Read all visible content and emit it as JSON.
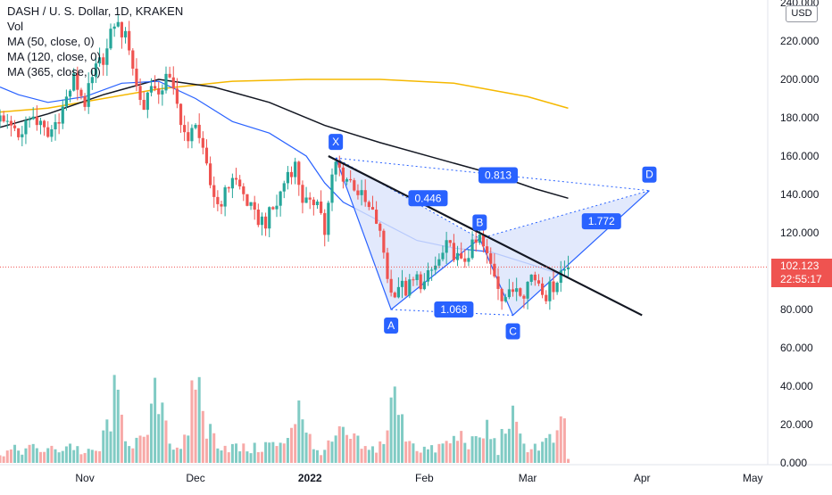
{
  "legend": {
    "symbol": "DASH / U. S. Dollar, 1D, KRAKEN",
    "vol": "Vol",
    "ma50": "MA (50, close, 0)",
    "ma120": "MA (120, close, 0)",
    "ma365": "MA (365, close, 0)"
  },
  "price_axis": {
    "currency": "USD",
    "last_price": "102.123",
    "countdown": "22:55:17"
  },
  "colors": {
    "up": "#26a69a",
    "down": "#ef5350",
    "vol_up": "#80cbc4",
    "vol_down": "#f7a9a7",
    "ma50": "#2962ff",
    "ma120": "#131722",
    "ma365": "#f5b800",
    "pattern": "#2962ff",
    "pattern_fill": "#dbe4fb",
    "trendline": "#131722"
  },
  "chart_data": {
    "type": "candlestick",
    "title": "DASH / U. S. Dollar, 1D, KRAKEN",
    "y_ticks": [
      "0.000",
      "20.000",
      "40.000",
      "60.000",
      "80.000",
      "100.000",
      "120.000",
      "140.000",
      "160.000",
      "180.000",
      "200.000",
      "220.000",
      "240.000"
    ],
    "ylim": [
      0,
      240
    ],
    "x_ticks": [
      {
        "label": "Nov",
        "day": 0
      },
      {
        "label": "Dec",
        "day": 30
      },
      {
        "label": "2022",
        "day": 61
      },
      {
        "label": "Feb",
        "day": 92
      },
      {
        "label": "Mar",
        "day": 120
      },
      {
        "label": "Apr",
        "day": 151
      },
      {
        "label": "May",
        "day": 181
      }
    ],
    "xlim_days": [
      -23,
      187
    ],
    "last_day": 131,
    "price_series_anchors": [
      [
        -23,
        178
      ],
      [
        -18,
        172
      ],
      [
        -14,
        181
      ],
      [
        -10,
        170
      ],
      [
        -6,
        185
      ],
      [
        -3,
        200
      ],
      [
        0,
        188
      ],
      [
        3,
        205
      ],
      [
        6,
        215
      ],
      [
        8,
        230
      ],
      [
        10,
        225
      ],
      [
        12,
        218
      ],
      [
        14,
        196
      ],
      [
        16,
        185
      ],
      [
        18,
        200
      ],
      [
        20,
        188
      ],
      [
        22,
        205
      ],
      [
        24,
        192
      ],
      [
        26,
        180
      ],
      [
        28,
        165
      ],
      [
        30,
        180
      ],
      [
        32,
        160
      ],
      [
        34,
        145
      ],
      [
        36,
        135
      ],
      [
        38,
        140
      ],
      [
        40,
        150
      ],
      [
        43,
        140
      ],
      [
        46,
        128
      ],
      [
        49,
        126
      ],
      [
        52,
        135
      ],
      [
        55,
        152
      ],
      [
        57,
        155
      ],
      [
        59,
        138
      ],
      [
        61,
        133
      ],
      [
        63,
        140
      ],
      [
        65,
        120
      ],
      [
        67,
        148
      ],
      [
        68,
        156
      ],
      [
        70,
        150
      ],
      [
        73,
        145
      ],
      [
        76,
        135
      ],
      [
        79,
        126
      ],
      [
        81,
        110
      ],
      [
        82,
        98
      ],
      [
        83,
        88
      ],
      [
        85,
        93
      ],
      [
        87,
        90
      ],
      [
        90,
        96
      ],
      [
        92,
        93
      ],
      [
        94,
        100
      ],
      [
        96,
        105
      ],
      [
        98,
        112
      ],
      [
        100,
        110
      ],
      [
        102,
        103
      ],
      [
        104,
        110
      ],
      [
        106,
        114
      ],
      [
        107,
        117
      ],
      [
        109,
        107
      ],
      [
        111,
        99
      ],
      [
        113,
        88
      ],
      [
        115,
        87
      ],
      [
        117,
        93
      ],
      [
        119,
        90
      ],
      [
        121,
        98
      ],
      [
        123,
        95
      ],
      [
        125,
        88
      ],
      [
        127,
        93
      ],
      [
        129,
        100
      ],
      [
        131,
        102.1
      ]
    ],
    "volume_anchors": [
      [
        -23,
        7
      ],
      [
        -15,
        9
      ],
      [
        -8,
        8
      ],
      [
        -4,
        12
      ],
      [
        0,
        6
      ],
      [
        4,
        8
      ],
      [
        8,
        40
      ],
      [
        12,
        15
      ],
      [
        16,
        12
      ],
      [
        20,
        48
      ],
      [
        24,
        10
      ],
      [
        28,
        14
      ],
      [
        30,
        60
      ],
      [
        33,
        22
      ],
      [
        37,
        12
      ],
      [
        42,
        9
      ],
      [
        46,
        9
      ],
      [
        50,
        12
      ],
      [
        54,
        10
      ],
      [
        58,
        42
      ],
      [
        62,
        7
      ],
      [
        66,
        10
      ],
      [
        69,
        18
      ],
      [
        73,
        14
      ],
      [
        77,
        7
      ],
      [
        81,
        14
      ],
      [
        84,
        43
      ],
      [
        86,
        24
      ],
      [
        90,
        10
      ],
      [
        94,
        8
      ],
      [
        98,
        12
      ],
      [
        102,
        17
      ],
      [
        106,
        12
      ],
      [
        109,
        22
      ],
      [
        112,
        8
      ],
      [
        115,
        32
      ],
      [
        118,
        14
      ],
      [
        121,
        10
      ],
      [
        124,
        12
      ],
      [
        128,
        16
      ],
      [
        130,
        26
      ],
      [
        131,
        3
      ]
    ],
    "ma365": [
      [
        -23,
        183
      ],
      [
        -10,
        185
      ],
      [
        5,
        190
      ],
      [
        20,
        195
      ],
      [
        40,
        199
      ],
      [
        60,
        200
      ],
      [
        80,
        200
      ],
      [
        100,
        198
      ],
      [
        120,
        191
      ],
      [
        131,
        185
      ]
    ],
    "ma120": [
      [
        -23,
        175
      ],
      [
        -10,
        182
      ],
      [
        5,
        192
      ],
      [
        20,
        200
      ],
      [
        35,
        196
      ],
      [
        50,
        188
      ],
      [
        65,
        176
      ],
      [
        80,
        167
      ],
      [
        95,
        159
      ],
      [
        110,
        151
      ],
      [
        122,
        143
      ],
      [
        131,
        138
      ]
    ],
    "ma50": [
      [
        -23,
        196
      ],
      [
        -18,
        192
      ],
      [
        -10,
        188
      ],
      [
        0,
        191
      ],
      [
        10,
        198
      ],
      [
        20,
        199
      ],
      [
        30,
        190
      ],
      [
        40,
        178
      ],
      [
        50,
        172
      ],
      [
        60,
        160
      ],
      [
        65,
        146
      ],
      [
        70,
        136
      ],
      [
        80,
        126
      ],
      [
        90,
        116
      ],
      [
        100,
        112
      ],
      [
        110,
        110
      ],
      [
        120,
        104
      ],
      [
        131,
        97
      ]
    ],
    "trendline": [
      [
        66,
        160
      ],
      [
        151,
        77
      ]
    ],
    "harmonic_points": [
      {
        "label": "X",
        "day": 68,
        "price": 159
      },
      {
        "label": "A",
        "day": 83,
        "price": 80
      },
      {
        "label": "B",
        "day": 107,
        "price": 117
      },
      {
        "label": "C",
        "day": 116,
        "price": 77
      },
      {
        "label": "D",
        "day": 153,
        "price": 142
      }
    ],
    "ratios": [
      {
        "text": "0.813",
        "day": 112,
        "price": 150
      },
      {
        "text": "0.446",
        "day": 93,
        "price": 138
      },
      {
        "text": "1.068",
        "day": 100,
        "price": 80
      },
      {
        "text": "1.772",
        "day": 140,
        "price": 126
      }
    ],
    "last_price_line": 102.123
  }
}
